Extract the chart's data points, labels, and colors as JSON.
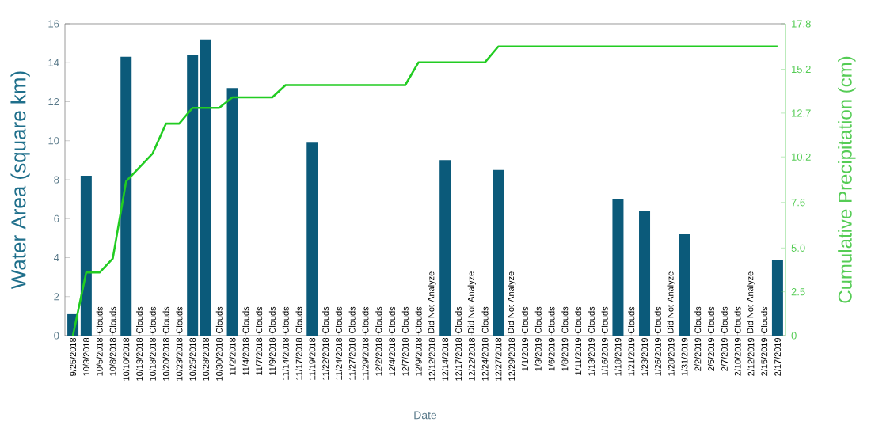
{
  "chart_data": {
    "type": "bar",
    "xlabel": "Date",
    "ylabel": "Water Area (square km)",
    "y2label": "Cumulative Precipitation (cm)",
    "categories": [
      "9/25/2018",
      "10/3/2018",
      "10/5/2018",
      "10/8/2018",
      "10/10/2018",
      "10/13/2018",
      "10/18/2018",
      "10/20/2018",
      "10/23/2018",
      "10/25/2018",
      "10/28/2018",
      "10/30/2018",
      "11/2/2018",
      "11/4/2018",
      "11/7/2018",
      "11/9/2018",
      "11/14/2018",
      "11/17/2018",
      "11/19/2018",
      "11/22/2018",
      "11/24/2018",
      "11/27/2018",
      "11/29/2018",
      "12/2/2018",
      "12/4/2018",
      "12/7/2018",
      "12/9/2018",
      "12/12/2018",
      "12/14/2018",
      "12/17/2018",
      "12/22/2018",
      "12/24/2018",
      "12/27/2018",
      "12/29/2018",
      "1/1/2019",
      "1/3/2019",
      "1/6/2019",
      "1/8/2019",
      "1/11/2019",
      "1/13/2019",
      "1/16/2019",
      "1/18/2019",
      "1/21/2019",
      "1/23/2019",
      "1/26/2019",
      "1/28/2019",
      "1/31/2019",
      "2/2/2019",
      "2/5/2019",
      "2/7/2019",
      "2/10/2019",
      "2/12/2019",
      "2/15/2019",
      "2/17/2019"
    ],
    "series": [
      {
        "color": "#0b5a7a",
        "values": [
          1.1,
          8.2,
          null,
          null,
          14.3,
          null,
          null,
          null,
          null,
          14.4,
          15.2,
          null,
          12.7,
          null,
          null,
          null,
          null,
          null,
          9.9,
          null,
          null,
          null,
          null,
          null,
          null,
          null,
          null,
          null,
          9.0,
          null,
          null,
          null,
          8.5,
          null,
          null,
          null,
          null,
          null,
          null,
          null,
          null,
          7.0,
          null,
          6.4,
          null,
          null,
          5.2,
          null,
          null,
          null,
          null,
          null,
          null,
          3.9
        ],
        "value_labels": [
          null,
          null,
          "Clouds",
          "Clouds",
          null,
          "Clouds",
          "Clouds",
          "Clouds",
          "Clouds",
          null,
          null,
          "Clouds",
          null,
          "Clouds",
          "Clouds",
          "Clouds",
          "Clouds",
          "Clouds",
          null,
          "Clouds",
          "Clouds",
          "Clouds",
          "Clouds",
          "Clouds",
          "Clouds",
          "Clouds",
          "Clouds",
          "Did Not Analyze",
          null,
          "Clouds",
          "Did Not Analyze",
          "Clouds",
          null,
          "Did Not Analyze",
          "Clouds",
          "Clouds",
          "Clouds",
          "Clouds",
          "Clouds",
          "Clouds",
          "Clouds",
          null,
          "Clouds",
          null,
          "Clouds",
          "Did Not Analyze",
          null,
          "Clouds",
          "Clouds",
          "Clouds",
          "Clouds",
          "Did Not Analyze",
          "Clouds",
          null
        ]
      },
      {
        "type": "line",
        "axis": "y2",
        "color": "#22cc22",
        "values": [
          0,
          3.6,
          3.6,
          4.4,
          8.8,
          9.6,
          10.4,
          12.1,
          12.1,
          13.0,
          13.0,
          13.0,
          13.6,
          13.6,
          13.6,
          13.6,
          14.3,
          14.3,
          14.3,
          14.3,
          14.3,
          14.3,
          14.3,
          14.3,
          14.3,
          14.3,
          15.6,
          15.6,
          15.6,
          15.6,
          15.6,
          15.6,
          16.5,
          16.5,
          16.5,
          16.5,
          16.5,
          16.5,
          16.5,
          16.5,
          16.5,
          16.5,
          16.5,
          16.5,
          16.5,
          16.5,
          16.5,
          16.5,
          16.5,
          16.5,
          16.5,
          16.5,
          16.5,
          16.5
        ]
      }
    ],
    "ylim": [
      0,
      16
    ],
    "yticks": [
      0,
      2,
      4,
      6,
      8,
      10,
      12,
      14,
      16
    ],
    "y2lim": [
      0,
      17.8
    ],
    "y2ticks": [
      0,
      2.5,
      {
        "value": 5.0,
        "label": "5.0"
      },
      7.6,
      10.2,
      12.7,
      15.2,
      17.8
    ]
  }
}
